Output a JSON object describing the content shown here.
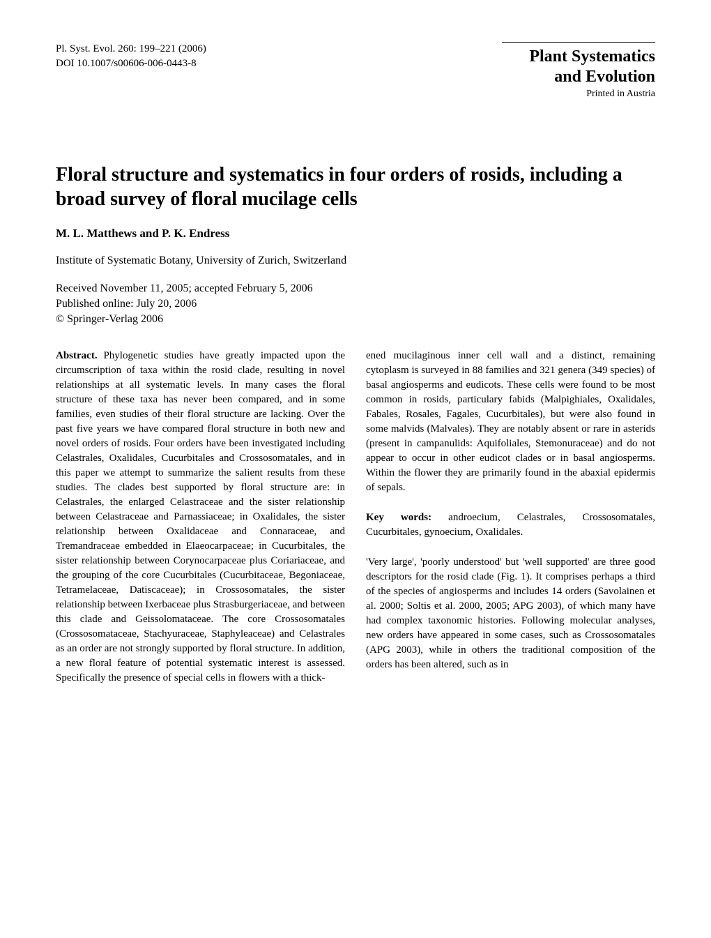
{
  "header": {
    "journal_ref": "Pl. Syst. Evol. 260: 199–221 (2006)",
    "doi": "DOI 10.1007/s00606-006-0443-8",
    "journal_name": "Plant Systematics",
    "journal_subtitle": "and Evolution",
    "printed_in": "Printed in Austria"
  },
  "article": {
    "title": "Floral structure and systematics in four orders of rosids, including a broad survey of floral mucilage cells",
    "authors": "M. L. Matthews and P. K. Endress",
    "affiliation": "Institute of Systematic Botany, University of Zurich, Switzerland",
    "received": "Received November 11, 2005; accepted February 5, 2006",
    "published": "Published online: July 20, 2006",
    "copyright": "© Springer-Verlag 2006"
  },
  "abstract": {
    "label": "Abstract.",
    "text_left": " Phylogenetic studies have greatly impacted upon the circumscription of taxa within the rosid clade, resulting in novel relationships at all systematic levels. In many cases the floral structure of these taxa has never been compared, and in some families, even studies of their floral structure are lacking. Over the past five years we have compared floral structure in both new and novel orders of rosids. Four orders have been investigated including Celastrales, Oxalidales, Cucurbitales and Crossosomatales, and in this paper we attempt to summarize the salient results from these studies. The clades best supported by floral structure are: in Celastrales, the enlarged Celastraceae and the sister relationship between Celastraceae and Parnassiaceae; in Oxalidales, the sister relationship between Oxalidaceae and Connaraceae, and Tremandraceae embedded in Elaeocarpaceae; in Cucurbitales, the sister relationship between Corynocarpaceae plus Coriariaceae, and the grouping of the core Cucurbitales (Cucurbitaceae, Begoniaceae, Tetramelaceae, Datiscaceae); in Crossosomatales, the sister relationship between Ixerbaceae plus Strasburgeriaceae, and between this clade and Geissolomataceae. The core Crossosomatales (Crossosomataceae, Stachyuraceae, Staphyleaceae) and Celastrales as an order are not strongly supported by floral structure. In addition, a new floral feature of potential systematic interest is assessed. Specifically the presence of special cells in flowers with a thick-",
    "text_right": "ened mucilaginous inner cell wall and a distinct, remaining cytoplasm is surveyed in 88 families and 321 genera (349 species) of basal angiosperms and eudicots. These cells were found to be most common in rosids, particulary fabids (Malpighiales, Oxalidales, Fabales, Rosales, Fagales, Cucurbitales), but were also found in some malvids (Malvales). They are notably absent or rare in asterids (present in campanulids: Aquifoliales, Stemonuraceae) and do not appear to occur in other eudicot clades or in basal angiosperms. Within the flower they are primarily found in the abaxial epidermis of sepals."
  },
  "keywords": {
    "label": "Key words:",
    "text": " androecium, Celastrales, Crossosomatales, Cucurbitales, gynoecium, Oxalidales."
  },
  "intro": {
    "text": "'Very large', 'poorly understood' but 'well supported' are three good descriptors for the rosid clade (Fig. 1). It comprises perhaps a third of the species of angiosperms and includes 14 orders (Savolainen et al. 2000; Soltis et al. 2000, 2005; APG 2003), of which many have had complex taxonomic histories. Following molecular analyses, new orders have appeared in some cases, such as Crossosomatales (APG 2003), while in others the traditional composition of the orders has been altered, such as in"
  }
}
